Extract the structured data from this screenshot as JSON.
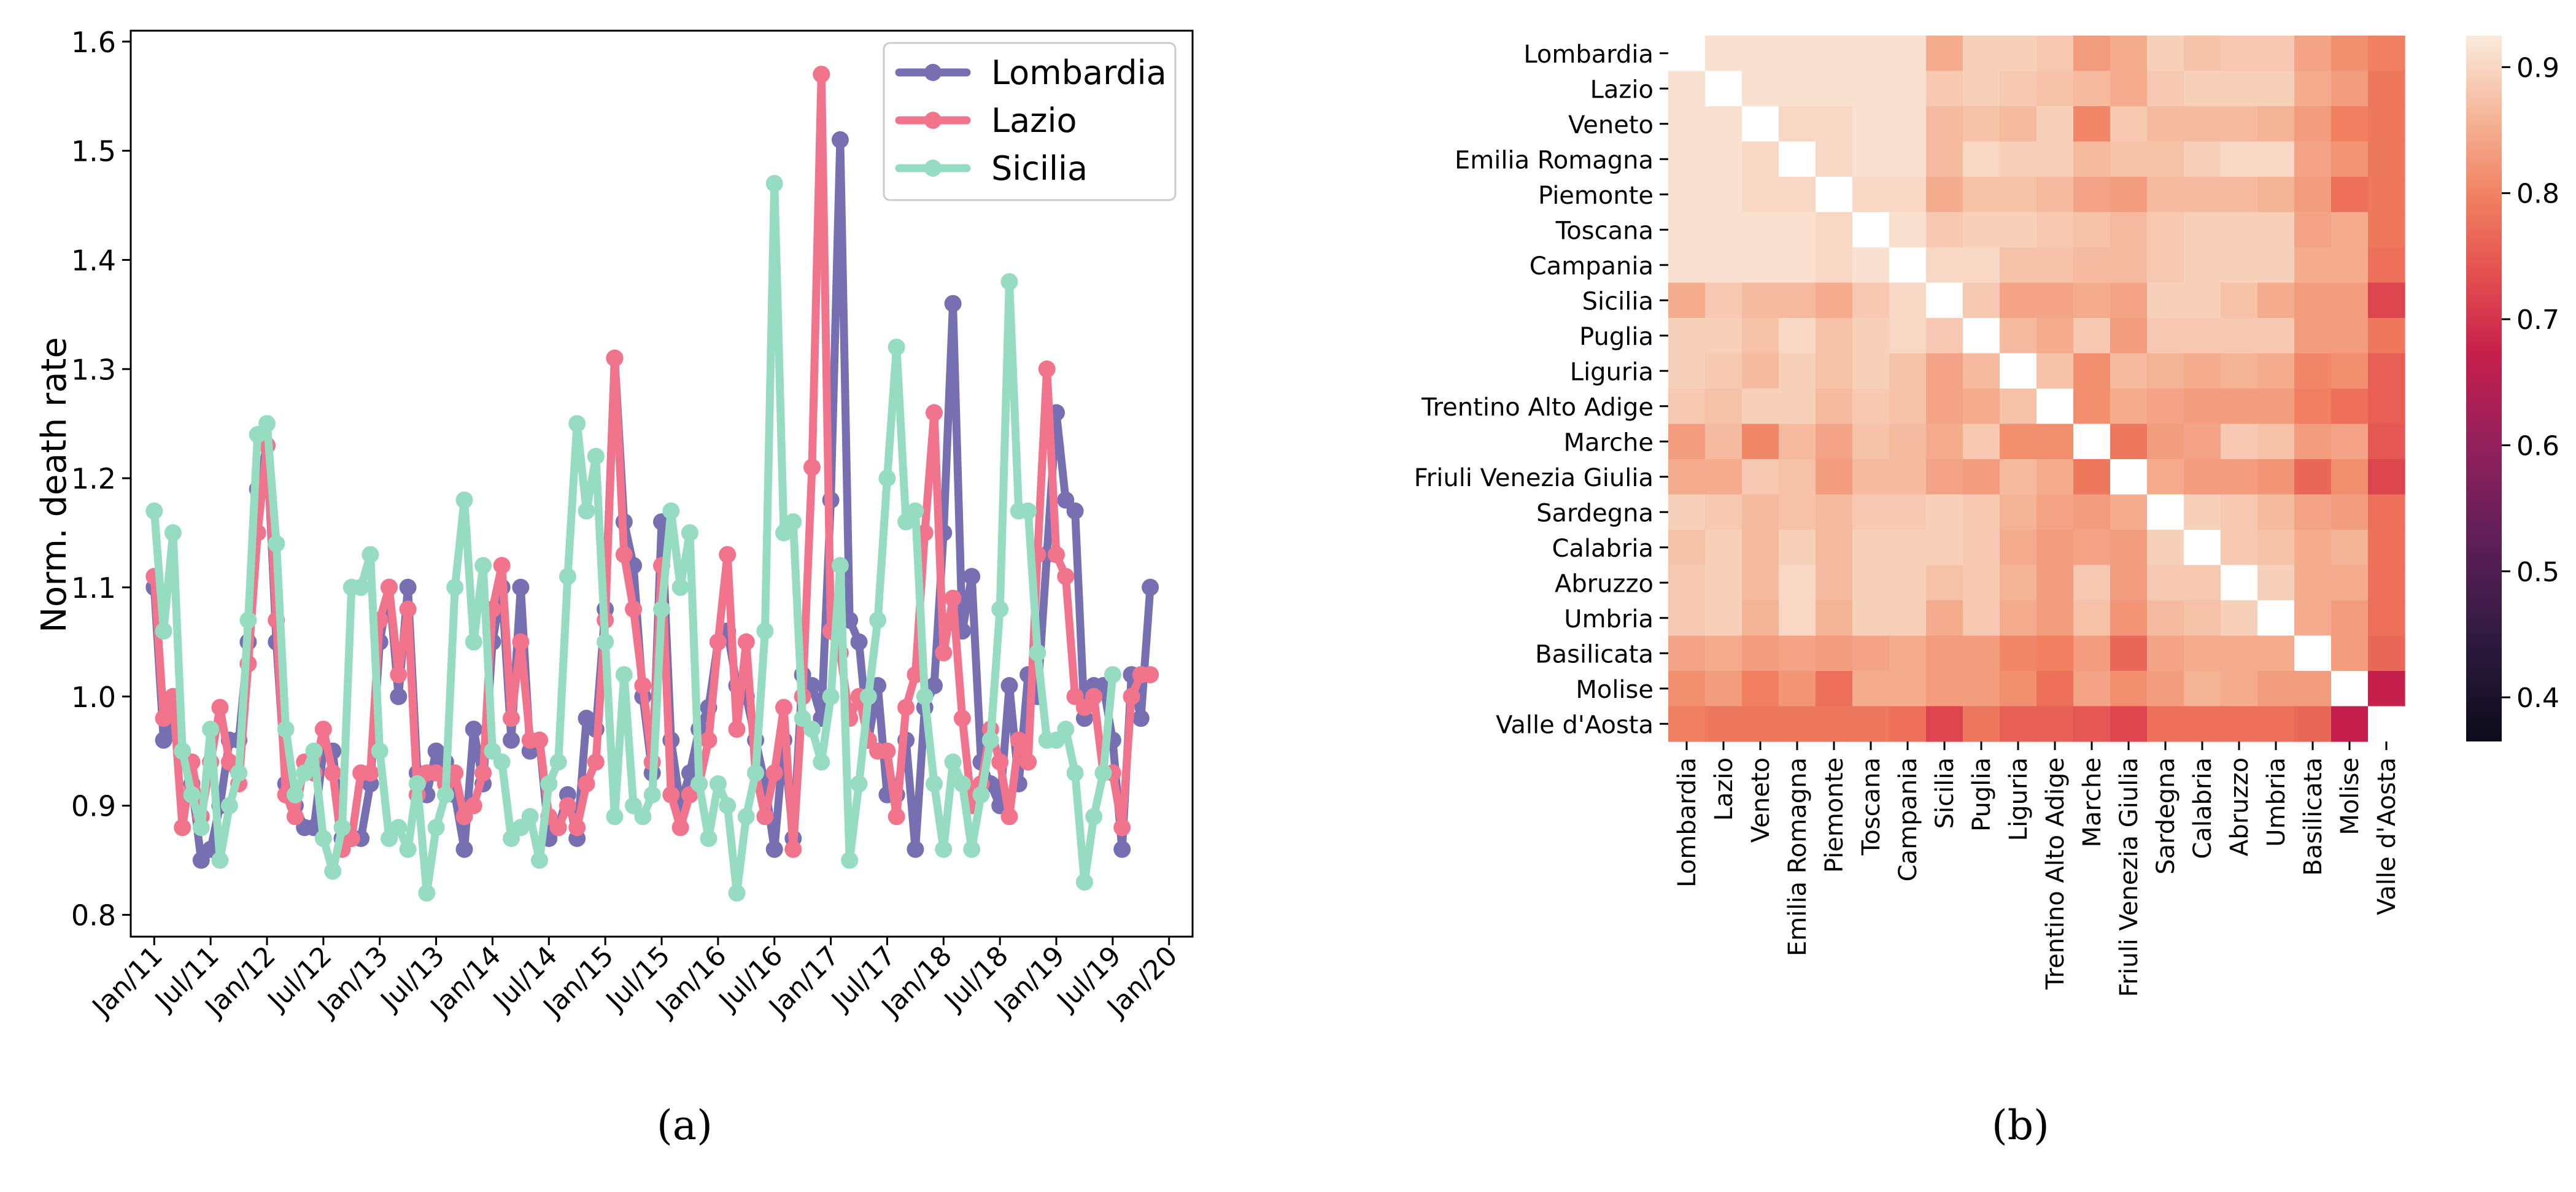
{
  "chart_data": [
    {
      "type": "line",
      "panel": "(a)",
      "ylabel": "Norm. death rate",
      "xlabel": "",
      "ylim": [
        0.78,
        1.61
      ],
      "yticks": [
        0.8,
        0.9,
        1.0,
        1.1,
        1.2,
        1.3,
        1.4,
        1.5,
        1.6
      ],
      "ytick_labels": [
        "0.8",
        "0.9",
        "1.0",
        "1.1",
        "1.2",
        "1.3",
        "1.4",
        "1.5",
        "1.6"
      ],
      "xlim": [
        -2.5,
        110.5
      ],
      "xticks": [
        0,
        6,
        12,
        18,
        24,
        30,
        36,
        42,
        48,
        54,
        60,
        66,
        72,
        78,
        84,
        90,
        96,
        102,
        108
      ],
      "xtick_labels": [
        "Jan/11",
        "Jul/11",
        "Jan/12",
        "Jul/12",
        "Jan/13",
        "Jul/13",
        "Jan/14",
        "Jul/14",
        "Jan/15",
        "Jul/15",
        "Jan/16",
        "Jul/16",
        "Jan/17",
        "Jul/17",
        "Jan/18",
        "Jul/18",
        "Jan/19",
        "Jul/19",
        "Jan/20"
      ],
      "legend_position": "top-right",
      "grid": false,
      "series": [
        {
          "name": "Lombardia",
          "color": "#7670b3",
          "values": [
            1.1,
            0.96,
            0.97,
            0.95,
            0.92,
            0.85,
            0.86,
            0.9,
            0.96,
            0.96,
            1.05,
            1.19,
            1.23,
            1.05,
            0.92,
            0.9,
            0.88,
            0.88,
            0.95,
            0.95,
            0.87,
            0.87,
            0.87,
            0.92,
            1.05,
            1.1,
            1.0,
            1.1,
            0.93,
            0.91,
            0.95,
            0.94,
            0.91,
            0.86,
            0.97,
            0.92,
            1.05,
            1.1,
            0.96,
            1.1,
            0.95,
            0.96,
            0.87,
            0.88,
            0.91,
            0.87,
            0.98,
            0.97,
            1.08,
            1.31,
            1.16,
            1.12,
            1.0,
            0.93,
            1.16,
            0.96,
            0.9,
            0.93,
            0.97,
            0.99,
            1.05,
            1.06,
            1.01,
            1.0,
            0.96,
            0.92,
            0.86,
            0.96,
            0.87,
            1.02,
            1.01,
            0.98,
            1.18,
            1.51,
            1.07,
            1.05,
            0.96,
            1.01,
            0.91,
            0.91,
            0.96,
            0.86,
            0.99,
            1.01,
            1.15,
            1.36,
            1.06,
            1.11,
            0.94,
            0.92,
            0.9,
            1.01,
            0.92,
            1.02,
            1.0,
            1.13,
            1.26,
            1.18,
            1.17,
            0.98,
            1.01,
            1.01,
            0.96,
            0.86,
            1.02,
            0.98,
            1.1
          ]
        },
        {
          "name": "Lazio",
          "color": "#f2738c",
          "values": [
            1.11,
            0.98,
            1.0,
            0.88,
            0.94,
            0.89,
            0.94,
            0.99,
            0.94,
            0.92,
            1.03,
            1.15,
            1.23,
            1.07,
            0.91,
            0.89,
            0.94,
            0.93,
            0.97,
            0.93,
            0.86,
            0.87,
            0.93,
            0.93,
            1.07,
            1.1,
            1.02,
            1.08,
            0.91,
            0.93,
            0.93,
            0.92,
            0.93,
            0.89,
            0.9,
            0.93,
            1.08,
            1.12,
            0.98,
            1.05,
            0.96,
            0.96,
            0.89,
            0.88,
            0.9,
            0.88,
            0.92,
            0.94,
            1.07,
            1.31,
            1.13,
            1.08,
            1.01,
            0.94,
            1.12,
            0.91,
            0.88,
            0.91,
            0.92,
            0.96,
            1.05,
            1.13,
            0.97,
            1.05,
            0.93,
            0.89,
            0.93,
            0.99,
            0.86,
            1.0,
            1.21,
            1.57,
            1.06,
            1.04,
            0.98,
            1.0,
            0.96,
            0.95,
            0.95,
            0.89,
            0.99,
            1.02,
            1.15,
            1.26,
            1.04,
            1.09,
            0.98,
            0.9,
            0.92,
            0.97,
            0.94,
            0.89,
            0.96,
            0.94,
            1.13,
            1.3,
            1.13,
            1.11,
            1.0,
            0.99,
            1.0,
            0.93,
            0.93,
            0.88,
            1.0,
            1.02,
            1.02
          ]
        },
        {
          "name": "Sicilia",
          "color": "#95dcc0",
          "values": [
            1.17,
            1.06,
            1.15,
            0.95,
            0.91,
            0.88,
            0.97,
            0.85,
            0.9,
            0.93,
            1.07,
            1.24,
            1.25,
            1.14,
            0.97,
            0.91,
            0.93,
            0.95,
            0.87,
            0.84,
            0.88,
            1.1,
            1.1,
            1.13,
            0.95,
            0.87,
            0.88,
            0.86,
            0.92,
            0.82,
            0.88,
            0.91,
            1.1,
            1.18,
            1.05,
            1.12,
            0.95,
            0.94,
            0.87,
            0.88,
            0.89,
            0.85,
            0.92,
            0.94,
            1.11,
            1.25,
            1.17,
            1.22,
            1.05,
            0.89,
            1.02,
            0.9,
            0.89,
            0.91,
            1.08,
            1.17,
            1.1,
            1.15,
            0.92,
            0.87,
            0.92,
            0.9,
            0.82,
            0.89,
            0.93,
            1.06,
            1.47,
            1.15,
            1.16,
            0.98,
            0.97,
            0.94,
            1.0,
            1.12,
            0.85,
            0.92,
            1.0,
            1.07,
            1.2,
            1.32,
            1.16,
            1.17,
            1.0,
            0.92,
            0.86,
            0.94,
            0.92,
            0.86,
            0.91,
            0.96,
            1.08,
            1.38,
            1.17,
            1.17,
            1.04,
            0.96,
            0.96,
            0.97,
            0.93,
            0.83,
            0.89,
            0.93,
            1.02
          ]
        }
      ]
    },
    {
      "type": "heatmap",
      "panel": "(b)",
      "labels": [
        "Lombardia",
        "Lazio",
        "Veneto",
        "Emilia Romagna",
        "Piemonte",
        "Toscana",
        "Campania",
        "Sicilia",
        "Puglia",
        "Liguria",
        "Trentino Alto Adige",
        "Marche",
        "Friuli Venezia Giulia",
        "Sardegna",
        "Calabria",
        "Abruzzo",
        "Umbria",
        "Basilicata",
        "Molise",
        "Valle d'Aosta"
      ],
      "colorbar": {
        "vmin": 0.365,
        "vmax": 0.925,
        "ticks": [
          0.4,
          0.5,
          0.6,
          0.7,
          0.8,
          0.9
        ],
        "tick_labels": [
          "0.4",
          "0.5",
          "0.6",
          "0.7",
          "0.8",
          "0.9"
        ]
      },
      "matrix": [
        [
          1.0,
          0.91,
          0.91,
          0.91,
          0.91,
          0.91,
          0.91,
          0.84,
          0.89,
          0.89,
          0.88,
          0.82,
          0.84,
          0.89,
          0.87,
          0.88,
          0.88,
          0.83,
          0.8,
          0.78
        ],
        [
          0.91,
          1.0,
          0.91,
          0.91,
          0.91,
          0.91,
          0.91,
          0.88,
          0.89,
          0.88,
          0.87,
          0.86,
          0.84,
          0.88,
          0.89,
          0.89,
          0.89,
          0.84,
          0.82,
          0.77
        ],
        [
          0.91,
          0.91,
          1.0,
          0.9,
          0.9,
          0.91,
          0.91,
          0.86,
          0.87,
          0.86,
          0.89,
          0.79,
          0.88,
          0.86,
          0.86,
          0.86,
          0.85,
          0.82,
          0.78,
          0.77
        ],
        [
          0.91,
          0.91,
          0.9,
          1.0,
          0.9,
          0.91,
          0.91,
          0.86,
          0.9,
          0.89,
          0.89,
          0.86,
          0.87,
          0.87,
          0.89,
          0.9,
          0.9,
          0.83,
          0.81,
          0.77
        ],
        [
          0.91,
          0.91,
          0.9,
          0.9,
          1.0,
          0.9,
          0.9,
          0.84,
          0.87,
          0.87,
          0.86,
          0.83,
          0.82,
          0.86,
          0.86,
          0.86,
          0.85,
          0.82,
          0.76,
          0.77
        ],
        [
          0.91,
          0.91,
          0.91,
          0.91,
          0.9,
          1.0,
          0.91,
          0.88,
          0.89,
          0.89,
          0.88,
          0.87,
          0.86,
          0.88,
          0.89,
          0.89,
          0.89,
          0.83,
          0.84,
          0.77
        ],
        [
          0.91,
          0.91,
          0.91,
          0.91,
          0.9,
          0.91,
          1.0,
          0.9,
          0.9,
          0.87,
          0.87,
          0.86,
          0.86,
          0.88,
          0.89,
          0.89,
          0.89,
          0.84,
          0.84,
          0.76
        ],
        [
          0.84,
          0.88,
          0.86,
          0.86,
          0.84,
          0.88,
          0.9,
          1.0,
          0.88,
          0.83,
          0.83,
          0.84,
          0.83,
          0.89,
          0.89,
          0.87,
          0.84,
          0.82,
          0.82,
          0.71
        ],
        [
          0.89,
          0.89,
          0.87,
          0.9,
          0.87,
          0.89,
          0.9,
          0.88,
          1.0,
          0.86,
          0.84,
          0.88,
          0.82,
          0.88,
          0.88,
          0.88,
          0.88,
          0.82,
          0.82,
          0.77
        ],
        [
          0.89,
          0.88,
          0.86,
          0.89,
          0.87,
          0.89,
          0.87,
          0.83,
          0.86,
          1.0,
          0.87,
          0.8,
          0.86,
          0.85,
          0.84,
          0.85,
          0.84,
          0.79,
          0.8,
          0.74
        ],
        [
          0.88,
          0.87,
          0.89,
          0.89,
          0.86,
          0.88,
          0.87,
          0.83,
          0.84,
          0.87,
          1.0,
          0.8,
          0.84,
          0.83,
          0.82,
          0.82,
          0.82,
          0.78,
          0.76,
          0.74
        ],
        [
          0.82,
          0.86,
          0.79,
          0.86,
          0.83,
          0.87,
          0.86,
          0.84,
          0.88,
          0.8,
          0.8,
          1.0,
          0.77,
          0.82,
          0.83,
          0.88,
          0.87,
          0.82,
          0.83,
          0.73
        ],
        [
          0.84,
          0.84,
          0.88,
          0.87,
          0.82,
          0.86,
          0.86,
          0.83,
          0.82,
          0.86,
          0.84,
          0.77,
          1.0,
          0.84,
          0.82,
          0.82,
          0.81,
          0.75,
          0.8,
          0.71
        ],
        [
          0.89,
          0.88,
          0.86,
          0.87,
          0.86,
          0.88,
          0.88,
          0.89,
          0.88,
          0.85,
          0.83,
          0.82,
          0.84,
          1.0,
          0.89,
          0.88,
          0.86,
          0.83,
          0.82,
          0.76
        ],
        [
          0.87,
          0.89,
          0.86,
          0.89,
          0.86,
          0.89,
          0.89,
          0.89,
          0.88,
          0.84,
          0.82,
          0.83,
          0.82,
          0.89,
          1.0,
          0.88,
          0.87,
          0.84,
          0.85,
          0.76
        ],
        [
          0.88,
          0.89,
          0.86,
          0.9,
          0.86,
          0.89,
          0.89,
          0.87,
          0.88,
          0.85,
          0.82,
          0.88,
          0.82,
          0.88,
          0.88,
          1.0,
          0.89,
          0.84,
          0.84,
          0.76
        ],
        [
          0.88,
          0.89,
          0.85,
          0.9,
          0.85,
          0.89,
          0.89,
          0.84,
          0.88,
          0.84,
          0.82,
          0.87,
          0.81,
          0.86,
          0.87,
          0.89,
          1.0,
          0.84,
          0.82,
          0.76
        ],
        [
          0.83,
          0.84,
          0.82,
          0.83,
          0.82,
          0.83,
          0.84,
          0.82,
          0.82,
          0.79,
          0.78,
          0.82,
          0.75,
          0.83,
          0.84,
          0.84,
          0.84,
          1.0,
          0.82,
          0.75
        ],
        [
          0.8,
          0.82,
          0.78,
          0.81,
          0.76,
          0.84,
          0.84,
          0.82,
          0.82,
          0.8,
          0.76,
          0.83,
          0.8,
          0.82,
          0.85,
          0.84,
          0.82,
          0.82,
          1.0,
          0.67
        ],
        [
          0.78,
          0.77,
          0.77,
          0.77,
          0.77,
          0.77,
          0.76,
          0.71,
          0.77,
          0.74,
          0.74,
          0.73,
          0.71,
          0.76,
          0.76,
          0.76,
          0.76,
          0.75,
          0.67,
          1.0
        ]
      ]
    }
  ],
  "captions": {
    "a": "(a)",
    "b": "(b)"
  }
}
